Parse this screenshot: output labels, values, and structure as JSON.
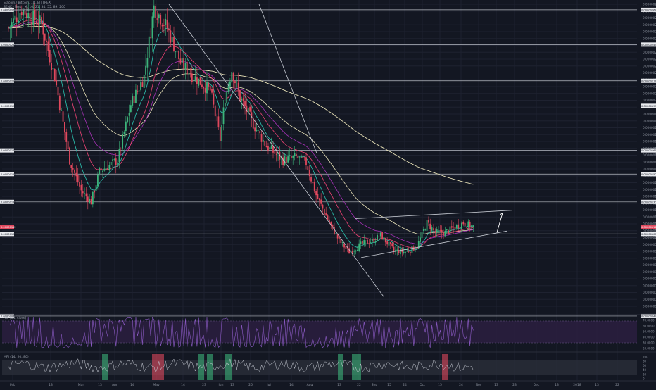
{
  "header": {
    "symbol_line": "Siacoin / Bitcoin, 1D, BITTREX",
    "study_line": "SENK · Smt · M, 10, 21, 34, 55, 89, 200",
    "extra_line": "Ht Sequential (9)"
  },
  "rsi": {
    "label": "RSI (14, close)",
    "ticks": [
      "70.0000",
      "60.0000",
      "50.0000",
      "40.0000",
      "30.0000",
      "20.0000"
    ]
  },
  "mfi": {
    "label": "MFI (14, 20, 80)",
    "ticks": [
      "100",
      "80",
      "60",
      "40",
      "20",
      "0"
    ]
  },
  "price_axis": {
    "ticks": [
      "0.00000270",
      "0.00000265",
      "0.00000260",
      "0.00000255",
      "0.00000250",
      "0.00000245",
      "0.00000240",
      "0.00000235",
      "0.00000230",
      "0.00000225",
      "0.00000220",
      "0.00000215",
      "0.00000210",
      "0.00000205",
      "0.00000200",
      "0.00000195",
      "0.00000190",
      "0.00000185",
      "0.00000180",
      "0.00000175",
      "0.00000170",
      "0.00000165",
      "0.00000160",
      "0.00000155",
      "0.00000150",
      "0.00000145",
      "0.00000140",
      "0.00000135",
      "0.00000130",
      "0.00000125",
      "0.00000120",
      "0.00000115",
      "0.00000110",
      "0.00000105",
      "0.00000100",
      "0.00000095",
      "0.00000090",
      "0.00000085",
      "0.00000080",
      "0.00000075",
      "0.00000070",
      "0.00000065",
      "0.00000060",
      "0.00000055",
      "0.00000050"
    ],
    "level_tags": [
      {
        "value": 2.68e-06,
        "left": "0.00000268",
        "right": "0.00000268"
      },
      {
        "value": 2.43e-06,
        "left": "0.00000243",
        "right": "0.00000243"
      },
      {
        "value": 2.17e-06,
        "left": "0.00000217",
        "right": "0.00000217"
      },
      {
        "value": 1.99e-06,
        "left": "0.00000199",
        "right": "0.00000199"
      },
      {
        "value": 1.67e-06,
        "left": "0.00000167",
        "right": "0.00000167"
      },
      {
        "value": 1.5e-06,
        "left": "0.00000150",
        "right": "0.00000150"
      },
      {
        "value": 1.3e-06,
        "left": "0.00000130",
        "right": "0.00000130"
      },
      {
        "value": 1.07e-06,
        "left": "0.00000107",
        "right": "0.00000107"
      },
      {
        "value": 4.8e-07,
        "left": "0.00000048",
        "right": "0.00000048"
      }
    ],
    "current_price": "0.00000112",
    "current_value": 1.12e-06
  },
  "colors": {
    "background": "#131722",
    "grid": "#1e2230",
    "up": "#3cb37a",
    "down": "#e0485d",
    "ema_teal": "#2ab8a6",
    "ema_red": "#e0406e",
    "ema_purple": "#a832b8",
    "ma_long": "#e8e2b8",
    "trendline": "#c8ccd4",
    "levels": "#b8bcc4",
    "rsi_band": "#2b1f3f",
    "rsi_line": "#8e5cc8",
    "mfi_line": "#c9cdd6",
    "price_tag": "#e0485d"
  },
  "time_axis": {
    "labels": [
      "Feb",
      "13",
      "Mar",
      "13",
      "Apr",
      "14",
      "May",
      "14",
      "23",
      "Jun",
      "13",
      "26",
      "Jul",
      "14",
      "Aug",
      "13",
      "22",
      "Sep",
      "15",
      "24",
      "Oct",
      "15",
      "24",
      "Nov",
      "13",
      "23",
      "Dec",
      "13",
      "2018",
      "13",
      "22"
    ]
  },
  "chart_data": {
    "type": "candlestick",
    "title": "Siacoin / Bitcoin, 1D, BITTREX",
    "series": [
      {
        "name": "Siacoin / Bitcoin",
        "kind": "ohlc",
        "start_index": 0,
        "close_path": [
          {
            "i": 0,
            "v": 2.55
          },
          {
            "i": 8,
            "v": 2.68
          },
          {
            "i": 20,
            "v": 2.58
          },
          {
            "i": 28,
            "v": 2.2
          },
          {
            "i": 37,
            "v": 1.6
          },
          {
            "i": 44,
            "v": 1.38
          },
          {
            "i": 50,
            "v": 1.3
          },
          {
            "i": 55,
            "v": 1.52
          },
          {
            "i": 66,
            "v": 1.6
          },
          {
            "i": 74,
            "v": 2.0
          },
          {
            "i": 82,
            "v": 2.2
          },
          {
            "i": 88,
            "v": 2.7
          },
          {
            "i": 96,
            "v": 2.55
          },
          {
            "i": 104,
            "v": 2.3
          },
          {
            "i": 112,
            "v": 2.2
          },
          {
            "i": 122,
            "v": 2.1
          },
          {
            "i": 128,
            "v": 1.75
          },
          {
            "i": 131,
            "v": 2.05
          },
          {
            "i": 135,
            "v": 2.25
          },
          {
            "i": 140,
            "v": 2.05
          },
          {
            "i": 148,
            "v": 1.86
          },
          {
            "i": 156,
            "v": 1.7
          },
          {
            "i": 166,
            "v": 1.6
          },
          {
            "i": 174,
            "v": 1.62
          },
          {
            "i": 180,
            "v": 1.58
          },
          {
            "i": 186,
            "v": 1.35
          },
          {
            "i": 194,
            "v": 1.15
          },
          {
            "i": 200,
            "v": 1.02
          },
          {
            "i": 206,
            "v": 0.94
          },
          {
            "i": 214,
            "v": 1.0
          },
          {
            "i": 220,
            "v": 1.02
          },
          {
            "i": 225,
            "v": 1.06
          },
          {
            "i": 233,
            "v": 0.95
          },
          {
            "i": 240,
            "v": 0.94
          },
          {
            "i": 247,
            "v": 0.98
          },
          {
            "i": 253,
            "v": 1.15
          },
          {
            "i": 258,
            "v": 1.08
          },
          {
            "i": 264,
            "v": 1.08
          },
          {
            "i": 270,
            "v": 1.12
          },
          {
            "i": 275,
            "v": 1.15
          },
          {
            "i": 281,
            "v": 1.12
          }
        ],
        "scale": "1e-6 BTC"
      }
    ],
    "moving_averages": [
      "EMA 10",
      "EMA 21",
      "EMA 34",
      "EMA 55",
      "EMA 89",
      "EMA 200"
    ],
    "annotations": [
      "descending trendline from late April high",
      "descending channel lower line",
      "ascending triangle (September–October)",
      "upward arrow projection"
    ],
    "ylim": [
      5e-07,
      2.7e-06
    ],
    "grid": true,
    "legend": "top-left"
  }
}
